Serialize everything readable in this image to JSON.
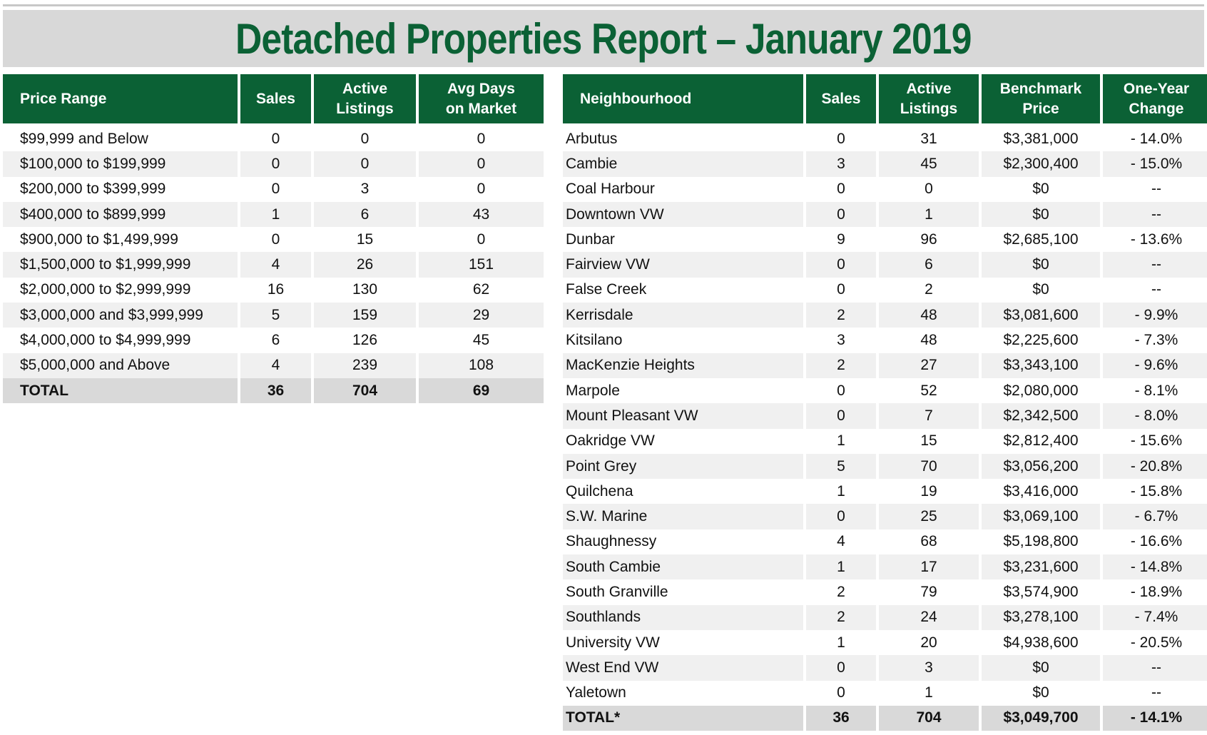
{
  "title": "Detached Properties Report – January 2019",
  "price_range_table": {
    "headers": [
      "Price Range",
      "Sales",
      "Active\nListings",
      "Avg Days\non Market"
    ],
    "rows": [
      [
        "$99,999 and Below",
        "0",
        "0",
        "0"
      ],
      [
        "$100,000 to $199,999",
        "0",
        "0",
        "0"
      ],
      [
        "$200,000 to $399,999",
        "0",
        "3",
        "0"
      ],
      [
        "$400,000 to $899,999",
        "1",
        "6",
        "43"
      ],
      [
        "$900,000 to $1,499,999",
        "0",
        "15",
        "0"
      ],
      [
        "$1,500,000 to $1,999,999",
        "4",
        "26",
        "151"
      ],
      [
        "$2,000,000 to $2,999,999",
        "16",
        "130",
        "62"
      ],
      [
        "$3,000,000 and $3,999,999",
        "5",
        "159",
        "29"
      ],
      [
        "$4,000,000 to $4,999,999",
        "6",
        "126",
        "45"
      ],
      [
        "$5,000,000 and Above",
        "4",
        "239",
        "108"
      ]
    ],
    "total": [
      "TOTAL",
      "36",
      "704",
      "69"
    ]
  },
  "neighbourhood_table": {
    "headers": [
      "Neighbourhood",
      "Sales",
      "Active\nListings",
      "Benchmark\nPrice",
      "One-Year\nChange"
    ],
    "rows": [
      [
        "Arbutus",
        "0",
        "31",
        "$3,381,000",
        "- 14.0%"
      ],
      [
        "Cambie",
        "3",
        "45",
        "$2,300,400",
        "- 15.0%"
      ],
      [
        "Coal Harbour",
        "0",
        "0",
        "$0",
        "--"
      ],
      [
        "Downtown VW",
        "0",
        "1",
        "$0",
        "--"
      ],
      [
        "Dunbar",
        "9",
        "96",
        "$2,685,100",
        "- 13.6%"
      ],
      [
        "Fairview VW",
        "0",
        "6",
        "$0",
        "--"
      ],
      [
        "False Creek",
        "0",
        "2",
        "$0",
        "--"
      ],
      [
        "Kerrisdale",
        "2",
        "48",
        "$3,081,600",
        "- 9.9%"
      ],
      [
        "Kitsilano",
        "3",
        "48",
        "$2,225,600",
        "- 7.3%"
      ],
      [
        "MacKenzie Heights",
        "2",
        "27",
        "$3,343,100",
        "- 9.6%"
      ],
      [
        "Marpole",
        "0",
        "52",
        "$2,080,000",
        "- 8.1%"
      ],
      [
        "Mount Pleasant VW",
        "0",
        "7",
        "$2,342,500",
        "- 8.0%"
      ],
      [
        "Oakridge VW",
        "1",
        "15",
        "$2,812,400",
        "- 15.6%"
      ],
      [
        "Point Grey",
        "5",
        "70",
        "$3,056,200",
        "- 20.8%"
      ],
      [
        "Quilchena",
        "1",
        "19",
        "$3,416,000",
        "- 15.8%"
      ],
      [
        "S.W. Marine",
        "0",
        "25",
        "$3,069,100",
        "- 6.7%"
      ],
      [
        "Shaughnessy",
        "4",
        "68",
        "$5,198,800",
        "- 16.6%"
      ],
      [
        "South Cambie",
        "1",
        "17",
        "$3,231,600",
        "- 14.8%"
      ],
      [
        "South Granville",
        "2",
        "79",
        "$3,574,900",
        "- 18.9%"
      ],
      [
        "Southlands",
        "2",
        "24",
        "$3,278,100",
        "- 7.4%"
      ],
      [
        "University VW",
        "1",
        "20",
        "$4,938,600",
        "- 20.5%"
      ],
      [
        "West End VW",
        "0",
        "3",
        "$0",
        "--"
      ],
      [
        "Yaletown",
        "0",
        "1",
        "$0",
        "--"
      ]
    ],
    "total": [
      "TOTAL*",
      "36",
      "704",
      "$3,049,700",
      "- 14.1%"
    ]
  },
  "colors": {
    "header_green": "#0b6135",
    "title_band": "#d8d8d8",
    "row_alt": "#f0f0f0",
    "total_row": "#d9d9d9"
  }
}
